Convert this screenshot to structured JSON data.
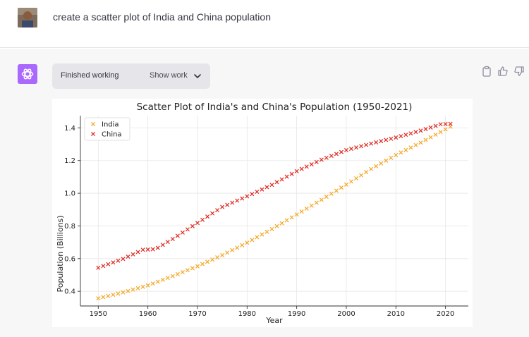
{
  "user_message": {
    "text": "create a scatter plot of India and China population"
  },
  "assistant": {
    "status": "Finished working",
    "show_work": "Show work",
    "actions": [
      "clipboard-icon",
      "thumbs-up-icon",
      "thumbs-down-icon"
    ]
  },
  "chart_data": {
    "type": "scatter",
    "title": "Scatter Plot of India's and China's Population (1950-2021)",
    "xlabel": "Year",
    "ylabel": "Population (Billions)",
    "xlim": [
      1946.4,
      2024.6
    ],
    "ylim": [
      0.31,
      1.475
    ],
    "xticks": [
      1950,
      1960,
      1970,
      1980,
      1990,
      2000,
      2010,
      2020
    ],
    "yticks": [
      0.4,
      0.6,
      0.8,
      1.0,
      1.2,
      1.4
    ],
    "ytick_labels": [
      "0.4",
      "0.6",
      "0.8",
      "1.0",
      "1.2",
      "1.4"
    ],
    "grid": true,
    "legend_position": "top-left",
    "marker": "x",
    "series": [
      {
        "name": "India",
        "color": "#f5a623",
        "anchors": [
          [
            1950,
            0.357
          ],
          [
            1955,
            0.393
          ],
          [
            1960,
            0.436
          ],
          [
            1965,
            0.493
          ],
          [
            1970,
            0.553
          ],
          [
            1975,
            0.621
          ],
          [
            1980,
            0.697
          ],
          [
            1985,
            0.781
          ],
          [
            1990,
            0.87
          ],
          [
            1995,
            0.96
          ],
          [
            2000,
            1.053
          ],
          [
            2005,
            1.148
          ],
          [
            2010,
            1.234
          ],
          [
            2015,
            1.31
          ],
          [
            2021,
            1.407
          ]
        ]
      },
      {
        "name": "China",
        "color": "#e0281f",
        "anchors": [
          [
            1950,
            0.544
          ],
          [
            1955,
            0.598
          ],
          [
            1959,
            0.654
          ],
          [
            1961,
            0.657
          ],
          [
            1962,
            0.666
          ],
          [
            1965,
            0.72
          ],
          [
            1970,
            0.818
          ],
          [
            1975,
            0.916
          ],
          [
            1980,
            0.981
          ],
          [
            1985,
            1.051
          ],
          [
            1990,
            1.135
          ],
          [
            1995,
            1.205
          ],
          [
            2000,
            1.264
          ],
          [
            2005,
            1.304
          ],
          [
            2010,
            1.341
          ],
          [
            2015,
            1.383
          ],
          [
            2019,
            1.422
          ],
          [
            2021,
            1.425
          ]
        ]
      }
    ]
  }
}
